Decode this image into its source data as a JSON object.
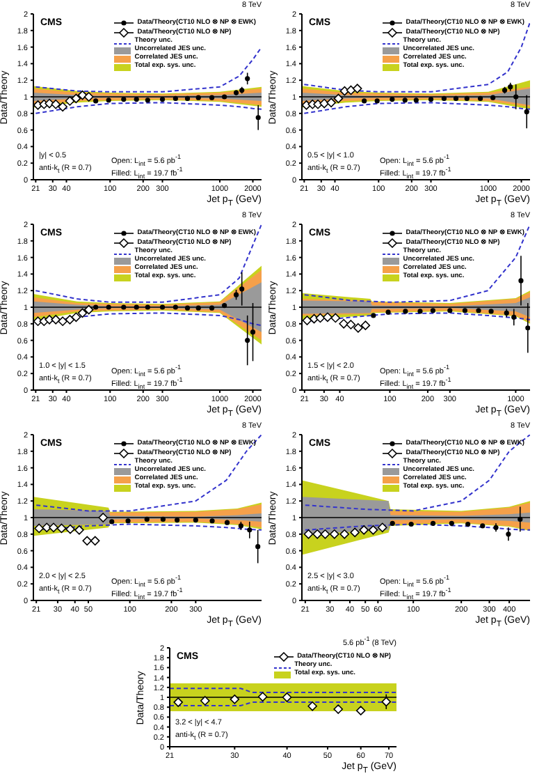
{
  "chart_data": [
    {
      "type": "scatter",
      "title": "8 TeV",
      "xlabel": "Jet p$_{T}$ (GeV)",
      "ylabel": "Data/Theory",
      "log": "x",
      "legend": "top right",
      "xlim": [
        20,
        2400
      ],
      "xticks": [
        21,
        30,
        40,
        100,
        200,
        300,
        1000,
        2000
      ],
      "ylim": [
        0,
        2
      ],
      "yticks": [
        0,
        0.2,
        0.4,
        0.6,
        0.8,
        1,
        1.2,
        1.4,
        1.6,
        1.8,
        2
      ],
      "annotations": [
        "CMS",
        "|y| < 0.5",
        "anti-k$_{t}$ (R = 0.7)",
        "Open: L$_{int}$ = 5.6 pb$^{-1}$",
        "Filled: L$_{int}$ = 19.7 fb$^{-1}$"
      ],
      "ref_lines": [
        {
          "axis": "y",
          "value": 1,
          "color": "#000000"
        }
      ],
      "series": [
        {
          "name": "Data/Theory(CT10 NLO ⊗ NP ⊗ EWK)",
          "color": "#000000",
          "marker": "circle",
          "x": [
            74,
            97,
            133,
            174,
            220,
            300,
            395,
            507,
            638,
            846,
            1101,
            1410,
            1588,
            1784,
            2238
          ],
          "values": [
            0.95,
            0.96,
            0.97,
            0.97,
            0.96,
            0.97,
            0.98,
            0.98,
            0.99,
            0.99,
            1.0,
            1.05,
            1.08,
            1.22,
            0.75
          ],
          "errors": [
            null,
            null,
            null,
            null,
            null,
            null,
            null,
            null,
            null,
            null,
            null,
            0.03,
            0.04,
            0.07,
            0.15
          ]
        },
        {
          "name": "Data/Theory(CT10 NLO ⊗ NP)",
          "color": "#000000",
          "marker": "diamond",
          "x": [
            22,
            25,
            28,
            32,
            37,
            43,
            49,
            56,
            64
          ],
          "values": [
            0.9,
            0.91,
            0.92,
            0.91,
            0.88,
            0.95,
            0.98,
            1.02,
            1.0
          ]
        },
        {
          "type": "line",
          "name": "Theory unc.",
          "color": "#3333cc",
          "line_style": "dashed",
          "marker": "none",
          "x": [
            21,
            50,
            100,
            300,
            1000,
            1500,
            2000,
            2400
          ],
          "values": [
            1.12,
            1.07,
            1.06,
            1.06,
            1.12,
            1.25,
            1.45,
            1.6
          ]
        },
        {
          "type": "line",
          "color": "#3333cc",
          "line_style": "dashed",
          "marker": "none",
          "x": [
            21,
            50,
            100,
            300,
            1000,
            1500,
            2000,
            2400
          ],
          "values": [
            0.8,
            0.88,
            0.92,
            0.93,
            0.9,
            0.88,
            0.86,
            0.85
          ]
        },
        {
          "type": "line",
          "name": "Uncorrelated JES unc.",
          "color": "#9a9a9a",
          "x": [
            20,
            50,
            100,
            300,
            1000,
            2400
          ],
          "values": [
            null,
            null,
            null,
            null,
            null,
            null
          ],
          "lower": [
            0.95,
            0.98,
            0.99,
            0.99,
            0.98,
            0.95
          ],
          "upper": [
            1.05,
            1.02,
            1.01,
            1.01,
            1.02,
            1.05
          ]
        },
        {
          "type": "line",
          "name": "Correlated JES unc.",
          "color": "#f5a04a",
          "x": [
            20,
            50,
            100,
            300,
            1000,
            2400
          ],
          "values": [
            null,
            null,
            null,
            null,
            null,
            null
          ],
          "lower": [
            0.9,
            0.95,
            0.96,
            0.97,
            0.95,
            0.9
          ],
          "upper": [
            1.1,
            1.05,
            1.04,
            1.03,
            1.05,
            1.1
          ]
        },
        {
          "type": "line",
          "name": "Total exp. sys. unc.",
          "color": "#c8d21e",
          "x": [
            20,
            50,
            100,
            300,
            1000,
            2400
          ],
          "values": [
            null,
            null,
            null,
            null,
            null,
            null
          ],
          "lower": [
            0.87,
            0.93,
            0.95,
            0.96,
            0.94,
            0.88
          ],
          "upper": [
            1.13,
            1.07,
            1.05,
            1.04,
            1.06,
            1.12
          ]
        }
      ]
    },
    {
      "type": "scatter",
      "title": "8 TeV",
      "xlabel": "Jet p$_{T}$ (GeV)",
      "ylabel": "Data/Theory",
      "log": "x",
      "legend": "top right",
      "xlim": [
        20,
        2400
      ],
      "xticks": [
        21,
        30,
        40,
        100,
        200,
        300,
        1000,
        2000
      ],
      "ylim": [
        0,
        2
      ],
      "yticks": [
        0,
        0.2,
        0.4,
        0.6,
        0.8,
        1,
        1.2,
        1.4,
        1.6,
        1.8,
        2
      ],
      "annotations": [
        "CMS",
        "0.5 < |y| < 1.0",
        "anti-k$_{t}$ (R = 0.7)",
        "Open: L$_{int}$ = 5.6 pb$^{-1}$",
        "Filled: L$_{int}$ = 19.7 fb$^{-1}$"
      ],
      "ref_lines": [
        {
          "axis": "y",
          "value": 1,
          "color": "#000000"
        }
      ],
      "series": [
        {
          "name": "Data/Theory(CT10 NLO ⊗ NP ⊗ EWK)",
          "color": "#000000",
          "marker": "circle",
          "x": [
            74,
            97,
            133,
            174,
            220,
            300,
            395,
            507,
            638,
            846,
            1101,
            1410,
            1588,
            1784,
            2238
          ],
          "values": [
            0.95,
            0.95,
            0.97,
            0.96,
            0.96,
            0.97,
            0.98,
            0.98,
            0.98,
            0.98,
            0.99,
            1.08,
            1.12,
            1.0,
            0.82
          ],
          "errors": [
            null,
            null,
            null,
            null,
            null,
            null,
            null,
            null,
            null,
            null,
            null,
            0.04,
            0.05,
            0.15,
            0.2
          ]
        },
        {
          "name": "Data/Theory(CT10 NLO ⊗ NP)",
          "color": "#000000",
          "marker": "diamond",
          "x": [
            22,
            25,
            28,
            32,
            37,
            43,
            49,
            56,
            64
          ],
          "values": [
            0.9,
            0.91,
            0.91,
            0.92,
            0.93,
            0.98,
            1.07,
            1.08,
            1.1
          ]
        },
        {
          "type": "line",
          "name": "Theory unc.",
          "color": "#3333cc",
          "line_style": "dashed",
          "marker": "none",
          "x": [
            21,
            50,
            100,
            300,
            1000,
            1500,
            2000,
            2400
          ],
          "values": [
            1.15,
            1.08,
            1.06,
            1.06,
            1.15,
            1.3,
            1.6,
            1.9
          ]
        },
        {
          "type": "line",
          "color": "#3333cc",
          "line_style": "dashed",
          "marker": "none",
          "x": [
            21,
            50,
            100,
            300,
            1000,
            1500,
            2000,
            2400
          ],
          "values": [
            0.8,
            0.88,
            0.92,
            0.93,
            0.9,
            0.88,
            0.86,
            0.85
          ]
        },
        {
          "type": "line",
          "name": "Uncorrelated JES unc.",
          "color": "#9a9a9a",
          "x": [
            20,
            50,
            100,
            300,
            1000,
            2400
          ],
          "values": [
            null,
            null,
            null,
            null,
            null,
            null
          ],
          "lower": [
            0.95,
            0.98,
            0.99,
            0.99,
            0.98,
            0.9
          ],
          "upper": [
            1.05,
            1.02,
            1.01,
            1.01,
            1.02,
            1.1
          ]
        },
        {
          "type": "line",
          "name": "Correlated JES unc.",
          "color": "#f5a04a",
          "x": [
            20,
            50,
            100,
            300,
            1000,
            2400
          ],
          "values": [
            null,
            null,
            null,
            null,
            null,
            null
          ],
          "lower": [
            0.9,
            0.95,
            0.96,
            0.97,
            0.95,
            0.88
          ],
          "upper": [
            1.1,
            1.05,
            1.04,
            1.03,
            1.05,
            1.12
          ]
        },
        {
          "type": "line",
          "name": "Total exp. sys. unc.",
          "color": "#c8d21e",
          "x": [
            20,
            50,
            100,
            300,
            1000,
            2400
          ],
          "values": [
            null,
            null,
            null,
            null,
            null,
            null
          ],
          "lower": [
            0.87,
            0.93,
            0.95,
            0.96,
            0.94,
            0.85
          ],
          "upper": [
            1.13,
            1.07,
            1.05,
            1.04,
            1.06,
            1.2
          ]
        }
      ]
    },
    {
      "type": "scatter",
      "title": "8 TeV",
      "xlabel": "Jet p$_{T}$ (GeV)",
      "ylabel": "Data/Theory",
      "log": "x",
      "legend": "top right",
      "xlim": [
        20,
        2400
      ],
      "xticks": [
        21,
        30,
        40,
        100,
        200,
        300,
        1000,
        2000
      ],
      "ylim": [
        0,
        2
      ],
      "yticks": [
        0,
        0.2,
        0.4,
        0.6,
        0.8,
        1,
        1.2,
        1.4,
        1.6,
        1.8,
        2
      ],
      "annotations": [
        "CMS",
        "1.0 < |y| < 1.5",
        "anti-k$_{t}$ (R = 0.7)",
        "Open: L$_{int}$ = 5.6 pb$^{-1}$",
        "Filled: L$_{int}$ = 19.7 fb$^{-1}$"
      ],
      "ref_lines": [
        {
          "axis": "y",
          "value": 1,
          "color": "#000000"
        }
      ],
      "series": [
        {
          "name": "Data/Theory(CT10 NLO ⊗ NP ⊗ EWK)",
          "color": "#000000",
          "marker": "circle",
          "x": [
            74,
            97,
            133,
            174,
            220,
            300,
            395,
            507,
            638,
            846,
            1101,
            1410,
            1588,
            1784,
            2000
          ],
          "values": [
            1.0,
            1.0,
            1.0,
            1.0,
            1.0,
            1.0,
            1.0,
            0.99,
            0.99,
            0.99,
            1.02,
            1.15,
            1.22,
            0.6,
            0.7
          ],
          "errors": [
            null,
            null,
            null,
            null,
            null,
            null,
            null,
            null,
            null,
            null,
            null,
            0.06,
            0.2,
            0.3,
            0.35
          ]
        },
        {
          "name": "Data/Theory(CT10 NLO ⊗ NP)",
          "color": "#000000",
          "marker": "diamond",
          "x": [
            22,
            25,
            28,
            32,
            37,
            43,
            49,
            56,
            64
          ],
          "values": [
            0.83,
            0.83,
            0.85,
            0.85,
            0.83,
            0.85,
            0.88,
            0.93,
            0.97
          ]
        },
        {
          "type": "line",
          "name": "Theory unc.",
          "color": "#3333cc",
          "line_style": "dashed",
          "marker": "none",
          "x": [
            21,
            50,
            100,
            300,
            1000,
            1500,
            2000,
            2400
          ],
          "values": [
            1.2,
            1.1,
            1.06,
            1.06,
            1.15,
            1.35,
            1.75,
            2.0
          ]
        },
        {
          "type": "line",
          "color": "#3333cc",
          "line_style": "dashed",
          "marker": "none",
          "x": [
            21,
            50,
            100,
            300,
            1000,
            1500,
            2000,
            2400
          ],
          "values": [
            0.8,
            0.88,
            0.92,
            0.93,
            0.9,
            0.85,
            0.8,
            0.78
          ]
        },
        {
          "type": "line",
          "name": "Uncorrelated JES unc.",
          "color": "#9a9a9a",
          "x": [
            20,
            50,
            100,
            300,
            1000,
            2400
          ],
          "values": [
            null,
            null,
            null,
            null,
            null,
            null
          ],
          "lower": [
            0.93,
            0.97,
            0.99,
            0.99,
            0.97,
            0.7
          ],
          "upper": [
            1.07,
            1.03,
            1.01,
            1.01,
            1.03,
            1.3
          ]
        },
        {
          "type": "line",
          "name": "Correlated JES unc.",
          "color": "#f5a04a",
          "x": [
            20,
            50,
            100,
            300,
            1000,
            2400
          ],
          "values": [
            null,
            null,
            null,
            null,
            null,
            null
          ],
          "lower": [
            0.88,
            0.95,
            0.96,
            0.97,
            0.94,
            0.6
          ],
          "upper": [
            1.12,
            1.05,
            1.04,
            1.03,
            1.06,
            1.45
          ]
        },
        {
          "type": "line",
          "name": "Total exp. sys. unc.",
          "color": "#c8d21e",
          "x": [
            20,
            50,
            100,
            300,
            1000,
            2400
          ],
          "values": [
            null,
            null,
            null,
            null,
            null,
            null
          ],
          "lower": [
            0.84,
            0.93,
            0.95,
            0.96,
            0.93,
            0.55
          ],
          "upper": [
            1.16,
            1.07,
            1.05,
            1.04,
            1.07,
            1.5
          ]
        }
      ]
    },
    {
      "type": "scatter",
      "title": "8 TeV",
      "xlabel": "Jet p$_{T}$ (GeV)",
      "ylabel": "Data/Theory",
      "log": "x",
      "legend": "top right",
      "xlim": [
        20,
        1300
      ],
      "xticks": [
        21,
        30,
        40,
        100,
        200,
        300,
        1000
      ],
      "ylim": [
        0,
        2
      ],
      "yticks": [
        0,
        0.2,
        0.4,
        0.6,
        0.8,
        1,
        1.2,
        1.4,
        1.6,
        1.8,
        2
      ],
      "annotations": [
        "CMS",
        "1.5 < |y| < 2.0",
        "anti-k$_{t}$ (R = 0.7)",
        "Open: L$_{int}$ = 5.6 pb$^{-1}$",
        "Filled: L$_{int}$ = 19.7 fb$^{-1}$"
      ],
      "ref_lines": [
        {
          "axis": "y",
          "value": 1,
          "color": "#000000"
        }
      ],
      "series": [
        {
          "name": "Data/Theory(CT10 NLO ⊗ NP ⊗ EWK)",
          "color": "#000000",
          "marker": "circle",
          "x": [
            74,
            97,
            133,
            174,
            220,
            300,
            395,
            507,
            638,
            846,
            967,
            1101,
            1248
          ],
          "values": [
            0.9,
            0.94,
            0.95,
            0.95,
            0.96,
            0.96,
            0.96,
            0.96,
            0.95,
            0.93,
            0.88,
            1.32,
            0.75
          ],
          "errors": [
            null,
            null,
            null,
            null,
            null,
            null,
            null,
            null,
            null,
            0.05,
            0.1,
            0.3,
            0.3
          ]
        },
        {
          "name": "Data/Theory(CT10 NLO ⊗ NP)",
          "color": "#000000",
          "marker": "diamond",
          "x": [
            22,
            25,
            28,
            32,
            37,
            43,
            49,
            56,
            64
          ],
          "values": [
            0.84,
            0.86,
            0.87,
            0.88,
            0.87,
            0.8,
            0.79,
            0.75,
            0.78
          ]
        },
        {
          "type": "line",
          "name": "Theory unc.",
          "color": "#3333cc",
          "line_style": "dashed",
          "marker": "none",
          "x": [
            21,
            50,
            100,
            300,
            600,
            1000,
            1300
          ],
          "values": [
            1.15,
            1.08,
            1.06,
            1.08,
            1.2,
            1.6,
            2.0
          ]
        },
        {
          "type": "line",
          "color": "#3333cc",
          "line_style": "dashed",
          "marker": "none",
          "x": [
            21,
            50,
            100,
            300,
            600,
            1000,
            1300
          ],
          "values": [
            0.82,
            0.88,
            0.92,
            0.93,
            0.9,
            0.87,
            0.85
          ]
        },
        {
          "type": "line",
          "name": "Uncorrelated JES unc.",
          "color": "#9a9a9a",
          "x": [
            20,
            70,
            72,
            300,
            1000,
            1300
          ],
          "values": [
            null,
            null,
            null,
            null,
            null,
            null
          ],
          "lower": [
            0.92,
            0.93,
            0.98,
            0.99,
            0.95,
            0.88
          ],
          "upper": [
            1.08,
            1.07,
            1.02,
            1.01,
            1.05,
            1.12
          ]
        },
        {
          "type": "line",
          "name": "Correlated JES unc.",
          "color": "#f5a04a",
          "x": [
            20,
            70,
            72,
            300,
            1000,
            1300
          ],
          "values": [
            null,
            null,
            null,
            null,
            null,
            null
          ],
          "lower": [
            0.9,
            0.92,
            0.94,
            0.96,
            0.9,
            0.82
          ],
          "upper": [
            1.1,
            1.08,
            1.06,
            1.04,
            1.1,
            1.18
          ]
        },
        {
          "type": "line",
          "name": "Total exp. sys. unc.",
          "color": "#c8d21e",
          "x": [
            20,
            70,
            72,
            300,
            1000,
            1300
          ],
          "values": [
            null,
            null,
            null,
            null,
            null,
            null
          ],
          "lower": [
            0.85,
            0.9,
            0.93,
            0.95,
            0.89,
            0.8
          ],
          "upper": [
            1.17,
            1.1,
            1.07,
            1.05,
            1.11,
            1.2
          ]
        }
      ]
    },
    {
      "type": "scatter",
      "title": "8 TeV",
      "xlabel": "Jet p$_{T}$ (GeV)",
      "ylabel": "Data/Theory",
      "log": "x",
      "legend": "top right",
      "xlim": [
        20,
        900
      ],
      "xticks": [
        21,
        30,
        40,
        50,
        100,
        200,
        300
      ],
      "ylim": [
        0,
        2
      ],
      "yticks": [
        0,
        0.2,
        0.4,
        0.6,
        0.8,
        1,
        1.2,
        1.4,
        1.6,
        1.8,
        2
      ],
      "annotations": [
        "CMS",
        "2.0 < |y| < 2.5",
        "anti-k$_{t}$ (R = 0.7)",
        "Open: L$_{int}$ = 5.6 pb$^{-1}$",
        "Filled: L$_{int}$ = 19.7 fb$^{-1}$"
      ],
      "ref_lines": [
        {
          "axis": "y",
          "value": 1,
          "color": "#000000"
        }
      ],
      "series": [
        {
          "name": "Data/Theory(CT10 NLO ⊗ NP ⊗ EWK)",
          "color": "#000000",
          "marker": "circle",
          "x": [
            74,
            97,
            133,
            174,
            220,
            300,
            395,
            507,
            638,
            737,
            846
          ],
          "values": [
            0.95,
            0.96,
            0.98,
            0.98,
            0.97,
            0.97,
            0.96,
            0.94,
            0.9,
            0.85,
            0.65
          ],
          "errors": [
            null,
            null,
            null,
            null,
            null,
            null,
            null,
            null,
            0.05,
            0.1,
            0.2
          ]
        },
        {
          "name": "Data/Theory(CT10 NLO ⊗ NP)",
          "color": "#000000",
          "marker": "diamond",
          "x": [
            22,
            25,
            28,
            32,
            37,
            43,
            49,
            56,
            64
          ],
          "values": [
            0.87,
            0.88,
            0.88,
            0.87,
            0.86,
            0.85,
            0.72,
            0.72,
            1.0
          ]
        },
        {
          "type": "line",
          "name": "Theory unc.",
          "color": "#3333cc",
          "line_style": "dashed",
          "marker": "none",
          "x": [
            21,
            50,
            100,
            300,
            500,
            700,
            900
          ],
          "values": [
            1.15,
            1.08,
            1.08,
            1.2,
            1.45,
            1.8,
            2.0
          ]
        },
        {
          "type": "line",
          "color": "#3333cc",
          "line_style": "dashed",
          "marker": "none",
          "x": [
            21,
            50,
            100,
            300,
            500,
            700,
            900
          ],
          "values": [
            0.85,
            0.9,
            0.92,
            0.9,
            0.88,
            0.86,
            0.85
          ]
        },
        {
          "type": "line",
          "name": "Uncorrelated JES unc.",
          "color": "#9a9a9a",
          "x": [
            20,
            70,
            72,
            300,
            600,
            900
          ],
          "values": [
            null,
            null,
            null,
            null,
            null,
            null
          ],
          "lower": [
            0.9,
            0.92,
            0.98,
            0.99,
            0.97,
            0.95
          ],
          "upper": [
            1.1,
            1.08,
            1.02,
            1.01,
            1.03,
            1.05
          ]
        },
        {
          "type": "line",
          "name": "Correlated JES unc.",
          "color": "#f5a04a",
          "x": [
            20,
            70,
            72,
            300,
            600,
            900
          ],
          "values": [
            null,
            null,
            null,
            null,
            null,
            null
          ],
          "lower": [
            0.9,
            0.92,
            0.94,
            0.95,
            0.92,
            0.88
          ],
          "upper": [
            1.1,
            1.08,
            1.06,
            1.07,
            1.1,
            1.16
          ]
        },
        {
          "type": "line",
          "name": "Total exp. sys. unc.",
          "color": "#c8d21e",
          "x": [
            20,
            70,
            72,
            300,
            600,
            900
          ],
          "values": [
            null,
            null,
            null,
            null,
            null,
            null
          ],
          "lower": [
            0.78,
            0.88,
            0.93,
            0.94,
            0.91,
            0.86
          ],
          "upper": [
            1.25,
            1.12,
            1.07,
            1.08,
            1.11,
            1.18
          ]
        }
      ]
    },
    {
      "type": "scatter",
      "title": "8 TeV",
      "xlabel": "Jet p$_{T}$ (GeV)",
      "ylabel": "Data/Theory",
      "log": "x",
      "legend": "top right",
      "xlim": [
        20,
        540
      ],
      "xticks": [
        21,
        30,
        40,
        50,
        60,
        100,
        200,
        300,
        400
      ],
      "ylim": [
        0,
        2
      ],
      "yticks": [
        0,
        0.2,
        0.4,
        0.6,
        0.8,
        1,
        1.2,
        1.4,
        1.6,
        1.8,
        2
      ],
      "annotations": [
        "CMS",
        "2.5 < |y| < 3.0",
        "anti-k$_{t}$ (R = 0.7)",
        "Open: L$_{int}$ = 5.6 pb$^{-1}$",
        "Filled: L$_{int}$ = 19.7 fb$^{-1}$"
      ],
      "ref_lines": [
        {
          "axis": "y",
          "value": 1,
          "color": "#000000"
        }
      ],
      "series": [
        {
          "name": "Data/Theory(CT10 NLO ⊗ NP ⊗ EWK)",
          "color": "#000000",
          "marker": "circle",
          "x": [
            74,
            97,
            133,
            174,
            220,
            272,
            330,
            395,
            468
          ],
          "values": [
            0.93,
            0.92,
            0.93,
            0.93,
            0.92,
            0.9,
            0.88,
            0.8,
            0.98
          ],
          "errors": [
            null,
            null,
            null,
            null,
            null,
            null,
            0.05,
            0.08,
            0.15
          ]
        },
        {
          "name": "Data/Theory(CT10 NLO ⊗ NP)",
          "color": "#000000",
          "marker": "diamond",
          "x": [
            22,
            25,
            28,
            32,
            37,
            43,
            49,
            56,
            64
          ],
          "values": [
            0.8,
            0.8,
            0.8,
            0.8,
            0.8,
            0.82,
            0.85,
            0.85,
            0.88
          ]
        },
        {
          "type": "line",
          "name": "Theory unc.",
          "color": "#3333cc",
          "line_style": "dashed",
          "marker": "none",
          "x": [
            21,
            50,
            100,
            200,
            300,
            400,
            540
          ],
          "values": [
            1.15,
            1.1,
            1.08,
            1.2,
            1.45,
            1.8,
            2.0
          ]
        },
        {
          "type": "line",
          "color": "#3333cc",
          "line_style": "dashed",
          "marker": "none",
          "x": [
            21,
            50,
            100,
            200,
            300,
            400,
            540
          ],
          "values": [
            0.85,
            0.9,
            0.92,
            0.9,
            0.88,
            0.86,
            0.85
          ]
        },
        {
          "type": "line",
          "name": "Uncorrelated JES unc.",
          "color": "#9a9a9a",
          "x": [
            20,
            70,
            72,
            200,
            400,
            540
          ],
          "values": [
            null,
            null,
            null,
            null,
            null,
            null
          ],
          "lower": [
            0.8,
            0.85,
            0.97,
            0.98,
            0.96,
            0.94
          ],
          "upper": [
            1.25,
            1.2,
            1.03,
            1.02,
            1.04,
            1.06
          ]
        },
        {
          "type": "line",
          "name": "Correlated JES unc.",
          "color": "#f5a04a",
          "x": [
            20,
            70,
            72,
            200,
            400,
            540
          ],
          "values": [
            null,
            null,
            null,
            null,
            null,
            null
          ],
          "lower": [
            0.85,
            0.88,
            0.92,
            0.94,
            0.9,
            0.85
          ],
          "upper": [
            1.15,
            1.12,
            1.08,
            1.07,
            1.12,
            1.18
          ]
        },
        {
          "type": "line",
          "name": "Total exp. sys. unc.",
          "color": "#c8d21e",
          "x": [
            20,
            70,
            72,
            200,
            400,
            540
          ],
          "values": [
            null,
            null,
            null,
            null,
            null,
            null
          ],
          "lower": [
            0.55,
            0.82,
            0.9,
            0.93,
            0.89,
            0.84
          ],
          "upper": [
            1.45,
            1.2,
            1.1,
            1.08,
            1.13,
            1.2
          ]
        }
      ]
    },
    {
      "type": "scatter",
      "title": "5.6 pb$^{-1}$ (8 TeV)",
      "xlabel": "Jet p$_{T}$ (GeV)",
      "ylabel": "Data/Theory",
      "log": "x",
      "legend": "top right",
      "xlim": [
        21,
        73
      ],
      "xticks": [
        21,
        30,
        40,
        50,
        60,
        70
      ],
      "ylim": [
        0,
        2
      ],
      "yticks": [
        0,
        0.2,
        0.4,
        0.6,
        0.8,
        1,
        1.2,
        1.4,
        1.6,
        1.8,
        2
      ],
      "annotations": [
        "CMS",
        "3.2 < |y| < 4.7",
        "anti-k$_{t}$ (R = 0.7)"
      ],
      "ref_lines": [
        {
          "axis": "y",
          "value": 1,
          "color": "#000000"
        }
      ],
      "series": [
        {
          "name": "Data/Theory(CT10 NLO ⊗ NP)",
          "color": "#000000",
          "marker": "diamond",
          "x": [
            22,
            25.5,
            30,
            35,
            40,
            46,
            53,
            60,
            69
          ],
          "values": [
            0.9,
            0.93,
            0.96,
            1.01,
            1.0,
            0.82,
            0.76,
            0.73,
            0.91
          ],
          "errors": [
            null,
            null,
            null,
            null,
            0.05,
            null,
            null,
            null,
            0.15
          ]
        },
        {
          "type": "line",
          "name": "Theory unc.",
          "color": "#3333cc",
          "line_style": "dashed",
          "marker": "none",
          "x": [
            21,
            31,
            33,
            73
          ],
          "values": [
            1.18,
            1.18,
            1.1,
            1.1
          ]
        },
        {
          "type": "line",
          "color": "#3333cc",
          "line_style": "dashed",
          "marker": "none",
          "x": [
            21,
            31,
            33,
            73
          ],
          "values": [
            0.83,
            0.83,
            0.9,
            0.9
          ]
        },
        {
          "type": "line",
          "name": "Total exp. sys. unc.",
          "color": "#c8d21e",
          "x": [
            21,
            73
          ],
          "values": [
            null,
            null
          ],
          "lower": [
            0.72,
            0.72
          ],
          "upper": [
            1.28,
            1.28
          ]
        }
      ]
    }
  ]
}
